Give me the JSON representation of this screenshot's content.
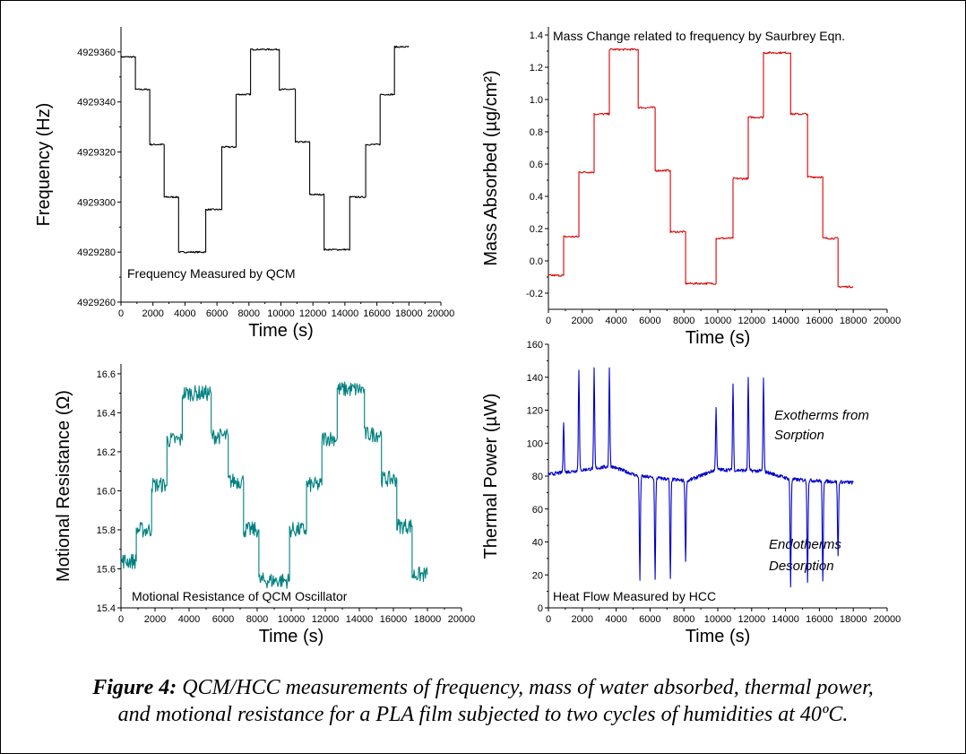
{
  "caption": {
    "label": "Figure 4:",
    "line1": "QCM/HCC measurements of frequency, mass of water absorbed, thermal power,",
    "line2": "and motional resistance for a PLA film subjected to two cycles of humidities at 40ºC."
  },
  "chart_data": [
    {
      "id": "frequency",
      "type": "line",
      "color": "#000000",
      "title": "",
      "xlabel": "Time (s)",
      "ylabel": "Frequency (Hz)",
      "xlim": [
        0,
        20000
      ],
      "ylim": [
        4929260,
        4929370
      ],
      "xticks": [
        0,
        2000,
        4000,
        6000,
        8000,
        10000,
        12000,
        14000,
        16000,
        18000,
        20000
      ],
      "yticks": [
        4929260,
        4929280,
        4929300,
        4929320,
        4929340,
        4929360
      ],
      "annotations": [
        {
          "text": "Frequency Measured by QCM"
        }
      ],
      "steps": [
        [
          0,
          4929358
        ],
        [
          900,
          4929345
        ],
        [
          1800,
          4929323
        ],
        [
          2700,
          4929302
        ],
        [
          3600,
          4929280
        ],
        [
          5300,
          4929297
        ],
        [
          6300,
          4929322
        ],
        [
          7200,
          4929343
        ],
        [
          8100,
          4929361
        ],
        [
          9900,
          4929345
        ],
        [
          10900,
          4929324
        ],
        [
          11800,
          4929303
        ],
        [
          12700,
          4929281
        ],
        [
          14300,
          4929302
        ],
        [
          15300,
          4929323
        ],
        [
          16200,
          4929343
        ],
        [
          17100,
          4929362
        ],
        [
          18000,
          4929362
        ]
      ]
    },
    {
      "id": "mass",
      "type": "line",
      "color": "#dd0000",
      "title": "",
      "xlabel": "Time (s)",
      "ylabel": "Mass Absorbed (µg/cm²)",
      "xlim": [
        0,
        20000
      ],
      "ylim": [
        -0.3,
        1.45
      ],
      "xticks": [
        0,
        2000,
        4000,
        6000,
        8000,
        10000,
        12000,
        14000,
        16000,
        18000,
        20000
      ],
      "yticks": [
        -0.2,
        0.0,
        0.2,
        0.4,
        0.6,
        0.8,
        1.0,
        1.2,
        1.4
      ],
      "annotations": [
        {
          "text": "Mass Change related to frequency by Saurbrey Eqn."
        }
      ],
      "steps": [
        [
          0,
          -0.09
        ],
        [
          900,
          0.15
        ],
        [
          1800,
          0.55
        ],
        [
          2700,
          0.91
        ],
        [
          3600,
          1.31
        ],
        [
          5300,
          0.95
        ],
        [
          6300,
          0.56
        ],
        [
          7200,
          0.18
        ],
        [
          8100,
          -0.14
        ],
        [
          9900,
          0.14
        ],
        [
          10900,
          0.51
        ],
        [
          11800,
          0.89
        ],
        [
          12700,
          1.29
        ],
        [
          14300,
          0.91
        ],
        [
          15300,
          0.52
        ],
        [
          16200,
          0.14
        ],
        [
          17100,
          -0.16
        ],
        [
          18000,
          -0.16
        ]
      ]
    },
    {
      "id": "resistance",
      "type": "line",
      "color": "#008080",
      "title": "",
      "xlabel": "Time (s)",
      "ylabel": "Motional Resistance (Ω)",
      "xlim": [
        0,
        20000
      ],
      "ylim": [
        15.4,
        16.65
      ],
      "xticks": [
        0,
        2000,
        4000,
        6000,
        8000,
        10000,
        12000,
        14000,
        16000,
        18000,
        20000
      ],
      "yticks": [
        15.4,
        15.6,
        15.8,
        16.0,
        16.2,
        16.4,
        16.6
      ],
      "annotations": [
        {
          "text": "Motional Resistance of QCM Oscillator"
        }
      ],
      "steps": [
        [
          0,
          15.64
        ],
        [
          900,
          15.8
        ],
        [
          1800,
          16.03
        ],
        [
          2700,
          16.26
        ],
        [
          3600,
          16.5
        ],
        [
          5300,
          16.28
        ],
        [
          6300,
          16.05
        ],
        [
          7200,
          15.8
        ],
        [
          8100,
          15.54
        ],
        [
          9900,
          15.8
        ],
        [
          10900,
          16.03
        ],
        [
          11800,
          16.27
        ],
        [
          12700,
          16.52
        ],
        [
          14300,
          16.29
        ],
        [
          15300,
          16.06
        ],
        [
          16200,
          15.82
        ],
        [
          17100,
          15.57
        ],
        [
          18000,
          15.57
        ]
      ]
    },
    {
      "id": "thermal",
      "type": "line",
      "color": "#0000cc",
      "title": "",
      "xlabel": "Time (s)",
      "ylabel": "Thermal Power (µW)",
      "xlim": [
        0,
        20000
      ],
      "ylim": [
        0,
        160
      ],
      "xticks": [
        0,
        2000,
        4000,
        6000,
        8000,
        10000,
        12000,
        14000,
        16000,
        18000,
        20000
      ],
      "yticks": [
        0,
        20,
        40,
        60,
        80,
        100,
        120,
        140,
        160
      ],
      "annotations": [
        {
          "text": "Exotherms from"
        },
        {
          "text": "Sorption"
        },
        {
          "text": "Endotherms"
        },
        {
          "text": "Desorption"
        },
        {
          "text": "Heat Flow Measured by HCC"
        }
      ],
      "baseline": [
        [
          0,
          81
        ],
        [
          3700,
          86
        ],
        [
          5300,
          80
        ],
        [
          8200,
          77
        ],
        [
          9900,
          84
        ],
        [
          12700,
          83
        ],
        [
          14300,
          78
        ],
        [
          18000,
          76
        ]
      ],
      "peaks": [
        [
          900,
          113
        ],
        [
          1800,
          145
        ],
        [
          2700,
          145
        ],
        [
          3600,
          145
        ],
        [
          5400,
          17
        ],
        [
          6300,
          17
        ],
        [
          7200,
          17
        ],
        [
          8100,
          29
        ],
        [
          9900,
          122
        ],
        [
          10900,
          136
        ],
        [
          11800,
          140
        ],
        [
          12700,
          140
        ],
        [
          14300,
          13
        ],
        [
          15300,
          15
        ],
        [
          16200,
          16
        ],
        [
          17100,
          31
        ]
      ]
    }
  ]
}
